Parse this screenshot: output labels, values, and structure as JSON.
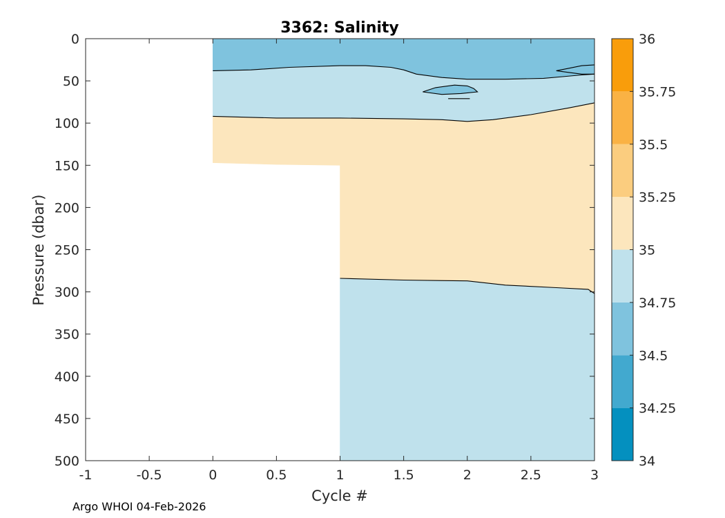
{
  "chart_data": {
    "type": "filled-contour",
    "title": "3362:  Salinity",
    "xlabel": "Cycle #",
    "ylabel": "Pressure (dbar)",
    "xlim": [
      -1,
      3
    ],
    "ylim": [
      0,
      500
    ],
    "y_reversed": true,
    "xticks": [
      -1,
      -0.5,
      0,
      0.5,
      1,
      1.5,
      2,
      2.5,
      3
    ],
    "yticks": [
      0,
      50,
      100,
      150,
      200,
      250,
      300,
      350,
      400,
      450,
      500
    ],
    "colorbar": {
      "limits": [
        34,
        36
      ],
      "ticks": [
        34,
        34.25,
        34.5,
        34.75,
        35,
        35.25,
        35.5,
        35.75,
        36
      ],
      "bands": [
        {
          "from": 34.0,
          "to": 34.25,
          "color": "#0490bf"
        },
        {
          "from": 34.25,
          "to": 34.5,
          "color": "#42a9cf"
        },
        {
          "from": 34.5,
          "to": 34.75,
          "color": "#7fc3de"
        },
        {
          "from": 34.75,
          "to": 35.0,
          "color": "#bfe1ec"
        },
        {
          "from": 35.0,
          "to": 35.25,
          "color": "#fce6bd"
        },
        {
          "from": 35.25,
          "to": 35.5,
          "color": "#fbcd7f"
        },
        {
          "from": 35.5,
          "to": 35.75,
          "color": "#fab244"
        },
        {
          "from": 35.75,
          "to": 36.0,
          "color": "#f99d0b"
        }
      ]
    },
    "regions": [
      {
        "name": "deep-fresh-layer",
        "band": "34.75-35",
        "color": "#bfe1ec",
        "polygon": [
          [
            1,
            284
          ],
          [
            1.5,
            286
          ],
          [
            2,
            287
          ],
          [
            2.3,
            292
          ],
          [
            2.7,
            295
          ],
          [
            2.95,
            297
          ],
          [
            3,
            302
          ],
          [
            3,
            500
          ],
          [
            1,
            500
          ]
        ]
      },
      {
        "name": "salty-core-layer",
        "band": "35-35.25",
        "color": "#fce6bd",
        "polygon": [
          [
            0,
            92
          ],
          [
            0.5,
            94
          ],
          [
            1,
            94
          ],
          [
            1.5,
            95
          ],
          [
            1.8,
            96
          ],
          [
            2,
            98
          ],
          [
            2.2,
            96
          ],
          [
            2.5,
            90
          ],
          [
            2.8,
            82
          ],
          [
            3,
            76
          ],
          [
            3,
            302
          ],
          [
            2.95,
            297
          ],
          [
            2.7,
            295
          ],
          [
            2.3,
            292
          ],
          [
            2,
            287
          ],
          [
            1.5,
            286
          ],
          [
            1,
            284
          ],
          [
            1,
            150
          ],
          [
            0.5,
            149
          ],
          [
            0,
            147
          ]
        ]
      },
      {
        "name": "upper-fresh-layer",
        "band": "34.75-35",
        "color": "#bfe1ec",
        "polygon": [
          [
            0,
            38
          ],
          [
            0.3,
            37
          ],
          [
            0.6,
            34
          ],
          [
            1,
            32
          ],
          [
            1.2,
            32
          ],
          [
            1.4,
            34
          ],
          [
            1.5,
            37
          ],
          [
            1.6,
            42
          ],
          [
            1.8,
            46
          ],
          [
            2,
            48
          ],
          [
            2.3,
            48
          ],
          [
            2.6,
            47
          ],
          [
            2.75,
            45
          ],
          [
            2.9,
            43
          ],
          [
            3,
            42
          ],
          [
            3,
            76
          ],
          [
            2.8,
            82
          ],
          [
            2.5,
            90
          ],
          [
            2.2,
            96
          ],
          [
            2,
            98
          ],
          [
            1.8,
            96
          ],
          [
            1.5,
            95
          ],
          [
            1,
            94
          ],
          [
            0.5,
            94
          ],
          [
            0,
            92
          ]
        ]
      },
      {
        "name": "surface-layer",
        "band": "34.5-34.75",
        "color": "#7fc3de",
        "polygon": [
          [
            0,
            0
          ],
          [
            3,
            0
          ],
          [
            3,
            42
          ],
          [
            2.9,
            43
          ],
          [
            2.75,
            45
          ],
          [
            2.6,
            47
          ],
          [
            2.3,
            48
          ],
          [
            2,
            48
          ],
          [
            1.8,
            46
          ],
          [
            1.6,
            42
          ],
          [
            1.5,
            37
          ],
          [
            1.4,
            34
          ],
          [
            1.2,
            32
          ],
          [
            1,
            32
          ],
          [
            0.6,
            34
          ],
          [
            0.3,
            37
          ],
          [
            0,
            38
          ]
        ]
      },
      {
        "name": "surface-tongue-patch",
        "band": "34.5-34.75",
        "color": "#7fc3de",
        "polygon": [
          [
            2.7,
            38
          ],
          [
            2.8,
            35
          ],
          [
            2.9,
            32
          ],
          [
            3,
            31
          ],
          [
            3,
            42
          ],
          [
            2.9,
            42
          ],
          [
            2.8,
            40
          ]
        ]
      },
      {
        "name": "subsurface-patch",
        "band": "34.5-34.75",
        "color": "#7fc3de",
        "polygon": [
          [
            1.65,
            63
          ],
          [
            1.75,
            58
          ],
          [
            1.9,
            55
          ],
          [
            2,
            56
          ],
          [
            2.05,
            59
          ],
          [
            2.08,
            63
          ],
          [
            1.95,
            65
          ],
          [
            1.8,
            66
          ]
        ]
      }
    ],
    "contour_lines": [
      {
        "name": "contour-line-35-deep",
        "level": 35,
        "points": [
          [
            1,
            284
          ],
          [
            1.5,
            286
          ],
          [
            2,
            287
          ],
          [
            2.3,
            292
          ],
          [
            2.7,
            295
          ],
          [
            2.95,
            297
          ],
          [
            3,
            302
          ]
        ]
      },
      {
        "name": "contour-line-35-upper",
        "level": 35,
        "points": [
          [
            0,
            92
          ],
          [
            0.5,
            94
          ],
          [
            1,
            94
          ],
          [
            1.5,
            95
          ],
          [
            1.8,
            96
          ],
          [
            2,
            98
          ],
          [
            2.2,
            96
          ],
          [
            2.5,
            90
          ],
          [
            2.8,
            82
          ],
          [
            3,
            76
          ]
        ]
      },
      {
        "name": "contour-line-34.75-surface",
        "level": 34.75,
        "points": [
          [
            0,
            38
          ],
          [
            0.3,
            37
          ],
          [
            0.6,
            34
          ],
          [
            1,
            32
          ],
          [
            1.2,
            32
          ],
          [
            1.4,
            34
          ],
          [
            1.5,
            37
          ],
          [
            1.6,
            42
          ],
          [
            1.8,
            46
          ],
          [
            2,
            48
          ],
          [
            2.3,
            48
          ],
          [
            2.6,
            47
          ],
          [
            2.75,
            45
          ],
          [
            2.9,
            43
          ],
          [
            3,
            42
          ]
        ]
      },
      {
        "name": "contour-line-34.75-tongue",
        "level": 34.75,
        "points": [
          [
            3,
            31
          ],
          [
            2.9,
            32
          ],
          [
            2.8,
            35
          ],
          [
            2.7,
            38
          ],
          [
            2.8,
            40
          ],
          [
            2.9,
            42
          ],
          [
            3,
            42
          ]
        ]
      },
      {
        "name": "contour-line-34.75-patch",
        "level": 34.75,
        "closed": true,
        "points": [
          [
            1.65,
            63
          ],
          [
            1.75,
            58
          ],
          [
            1.9,
            55
          ],
          [
            2,
            56
          ],
          [
            2.05,
            59
          ],
          [
            2.08,
            63
          ],
          [
            1.95,
            65
          ],
          [
            1.8,
            66
          ]
        ]
      },
      {
        "name": "contour-line-34.75-dash",
        "level": 34.75,
        "points": [
          [
            1.85,
            71
          ],
          [
            2.02,
            71
          ]
        ]
      }
    ]
  },
  "footer": "Argo WHOI 04-Feb-2026"
}
